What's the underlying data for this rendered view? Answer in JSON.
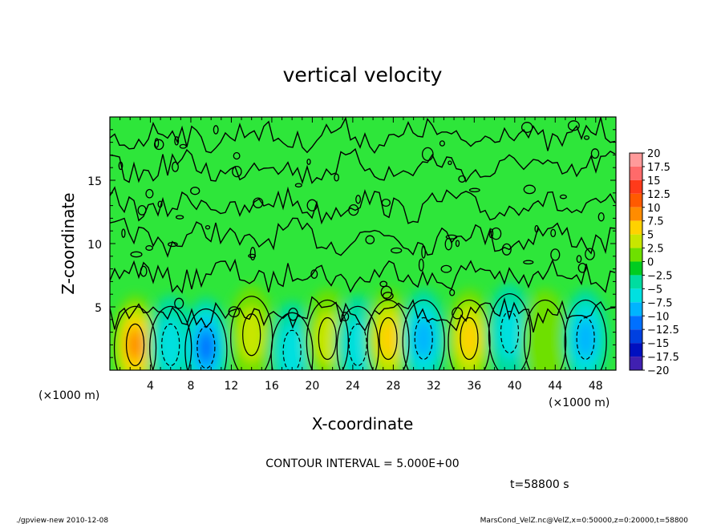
{
  "chart_data": {
    "type": "heatmap",
    "title": "vertical velocity",
    "xlabel": "X-coordinate",
    "ylabel": "Z-coordinate",
    "x_unit_label": "(×1000 m)",
    "y_unit_label": "(×1000 m)",
    "xlim": [
      0,
      50
    ],
    "ylim": [
      0,
      20
    ],
    "x_ticks": [
      4,
      8,
      12,
      16,
      20,
      24,
      28,
      32,
      36,
      40,
      44,
      48
    ],
    "y_ticks": [
      5,
      10,
      15
    ],
    "colorbar": {
      "levels": [
        "20",
        "17.5",
        "15",
        "12.5",
        "10",
        "7.5",
        "5",
        "2.5",
        "0",
        "−2.5",
        "−5",
        "−7.5",
        "−10",
        "−12.5",
        "−15",
        "−17.5",
        "−20"
      ],
      "colors": [
        "#ff9a9a",
        "#ff6a6a",
        "#ff3a1a",
        "#ff5a00",
        "#ff8c00",
        "#ffd200",
        "#c8e600",
        "#6ee000",
        "#00cc20",
        "#00dca0",
        "#00e0e0",
        "#00b4ff",
        "#0070ff",
        "#0040e0",
        "#0010c0",
        "#4020b0",
        "#7010b0"
      ]
    },
    "features": [
      {
        "kind": "updraft",
        "x": 2.5,
        "z": 2.0,
        "peak": 10,
        "sign": "positive"
      },
      {
        "kind": "downdraft",
        "x": 6.0,
        "z": 2.0,
        "peak": -5,
        "sign": "negative"
      },
      {
        "kind": "downdraft",
        "x": 9.5,
        "z": 1.8,
        "peak": -10,
        "sign": "negative"
      },
      {
        "kind": "updraft",
        "x": 14.0,
        "z": 2.8,
        "peak": 5,
        "sign": "positive"
      },
      {
        "kind": "downdraft",
        "x": 18.0,
        "z": 1.5,
        "peak": -5,
        "sign": "negative"
      },
      {
        "kind": "updraft",
        "x": 21.5,
        "z": 2.5,
        "peak": 5,
        "sign": "positive"
      },
      {
        "kind": "downdraft",
        "x": 24.5,
        "z": 2.0,
        "peak": -5,
        "sign": "negative"
      },
      {
        "kind": "updraft",
        "x": 27.5,
        "z": 2.5,
        "peak": 7.5,
        "sign": "positive"
      },
      {
        "kind": "downdraft",
        "x": 31.0,
        "z": 2.5,
        "peak": -7.5,
        "sign": "negative"
      },
      {
        "kind": "updraft",
        "x": 35.5,
        "z": 2.5,
        "peak": 7.5,
        "sign": "positive"
      },
      {
        "kind": "downdraft",
        "x": 39.5,
        "z": 3.0,
        "peak": -5,
        "sign": "negative"
      },
      {
        "kind": "updraft",
        "x": 43.0,
        "z": 2.5,
        "peak": 2.5,
        "sign": "positive"
      },
      {
        "kind": "downdraft",
        "x": 47.0,
        "z": 2.5,
        "peak": -7.5,
        "sign": "negative"
      }
    ],
    "contour_interval_text": "CONTOUR INTERVAL = 5.000E+00",
    "time_text": "t=58800 s"
  },
  "footer": {
    "left": "./gpview-new   2010-12-08",
    "right": "MarsCond_VelZ.nc@VelZ,x=0:50000,z=0:20000,t=58800"
  }
}
